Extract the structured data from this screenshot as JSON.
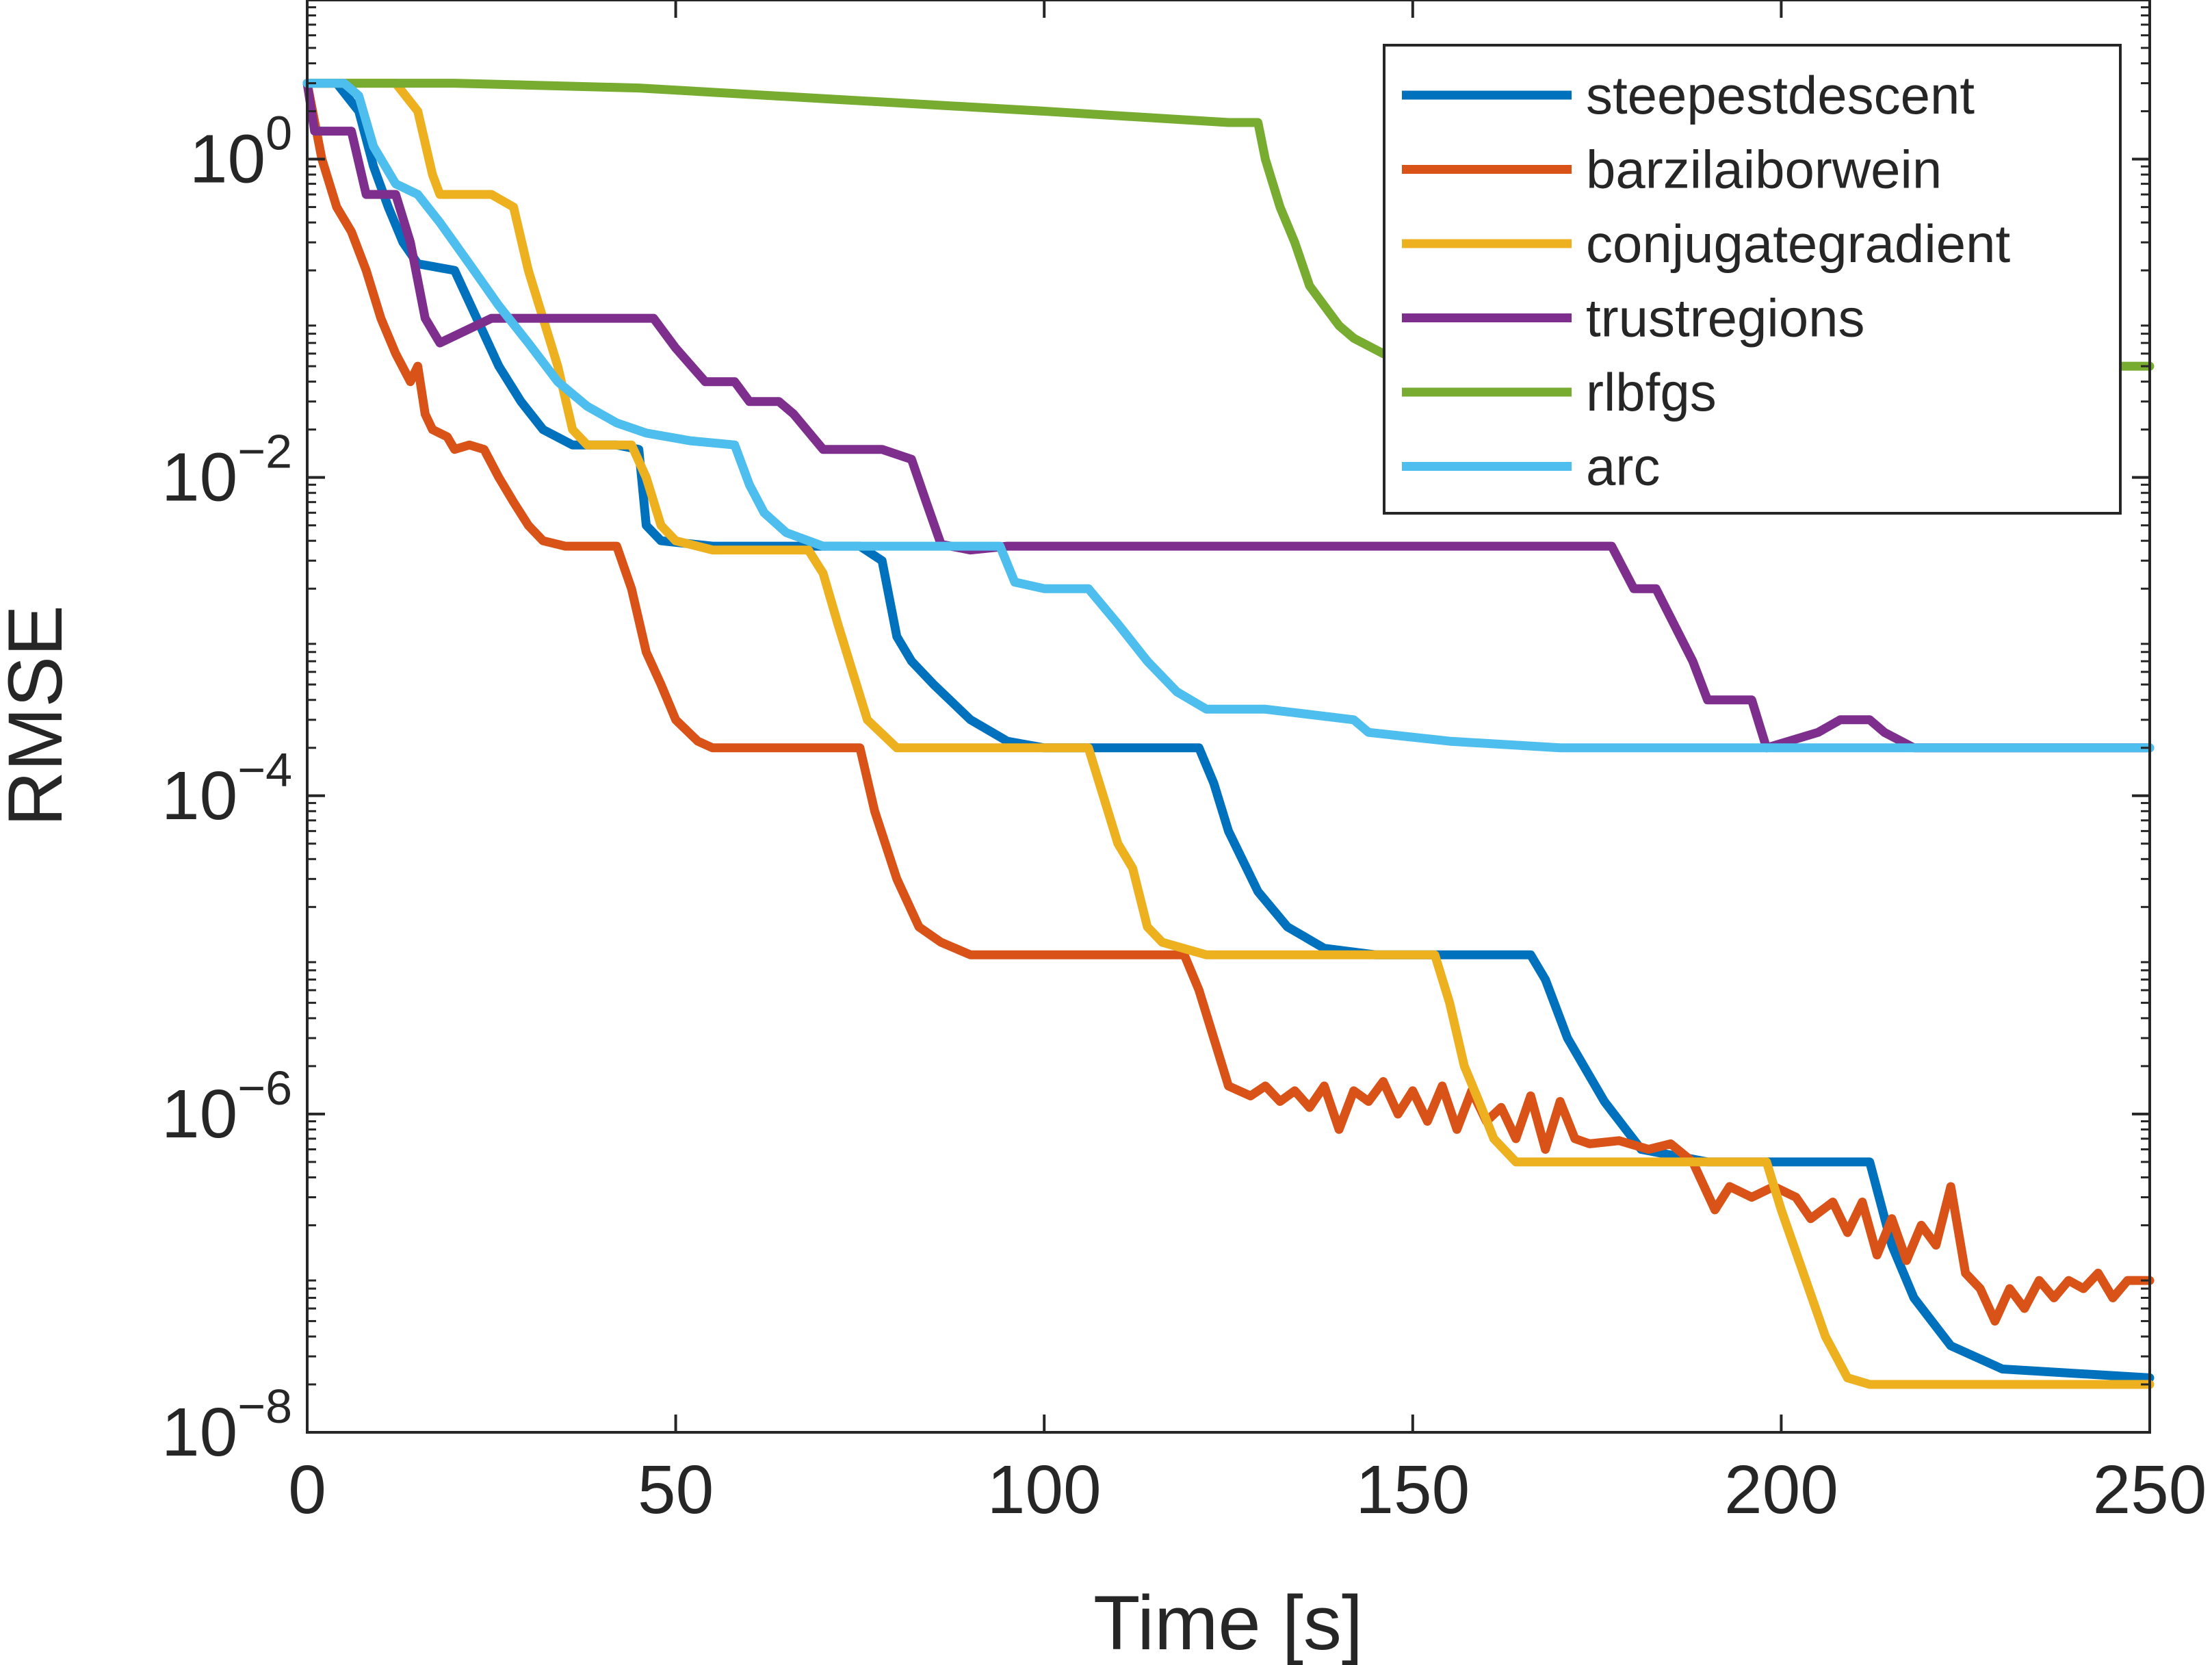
{
  "chart_data": {
    "type": "line",
    "title": "",
    "xlabel": "Time [s]",
    "ylabel": "RMSE",
    "yscale": "log",
    "xlim": [
      0,
      250
    ],
    "ylim": [
      1e-08,
      10
    ],
    "xticks": [
      0,
      50,
      100,
      150,
      200,
      250
    ],
    "xtick_labels": [
      "0",
      "50",
      "100",
      "150",
      "200",
      "250"
    ],
    "yticks": [
      {
        "value": 1e-08,
        "base": "10",
        "exp": "−8"
      },
      {
        "value": 1e-06,
        "base": "10",
        "exp": "−6"
      },
      {
        "value": 0.0001,
        "base": "10",
        "exp": "−4"
      },
      {
        "value": 0.01,
        "base": "10",
        "exp": "−2"
      },
      {
        "value": 1,
        "base": "10",
        "exp": "0"
      }
    ],
    "grid": false,
    "legend_position": "top-right",
    "series": [
      {
        "name": "steepestdescent",
        "color": "#0072BD",
        "points": [
          [
            0,
            3.0
          ],
          [
            4,
            3.0
          ],
          [
            7,
            2.0
          ],
          [
            9,
            0.9
          ],
          [
            11,
            0.5
          ],
          [
            13,
            0.3
          ],
          [
            15,
            0.22
          ],
          [
            20,
            0.2
          ],
          [
            23,
            0.1
          ],
          [
            26,
            0.05
          ],
          [
            29,
            0.03
          ],
          [
            32,
            0.02
          ],
          [
            36,
            0.016
          ],
          [
            42,
            0.016
          ],
          [
            45,
            0.015
          ],
          [
            46,
            0.005
          ],
          [
            48,
            0.004
          ],
          [
            55,
            0.0037
          ],
          [
            68,
            0.0037
          ],
          [
            75,
            0.0037
          ],
          [
            78,
            0.003
          ],
          [
            80,
            0.001
          ],
          [
            82,
            0.0007
          ],
          [
            85,
            0.0005
          ],
          [
            90,
            0.0003
          ],
          [
            95,
            0.00022
          ],
          [
            100,
            0.0002
          ],
          [
            114,
            0.0002
          ],
          [
            121,
            0.0002
          ],
          [
            123,
            0.00012
          ],
          [
            125,
            6e-05
          ],
          [
            129,
            2.5e-05
          ],
          [
            133,
            1.5e-05
          ],
          [
            138,
            1.1e-05
          ],
          [
            145,
            1e-05
          ],
          [
            166,
            1e-05
          ],
          [
            168,
            7e-06
          ],
          [
            171,
            3e-06
          ],
          [
            176,
            1.2e-06
          ],
          [
            181,
            6e-07
          ],
          [
            190,
            5e-07
          ],
          [
            212,
            5e-07
          ],
          [
            215,
            1.5e-07
          ],
          [
            218,
            7e-08
          ],
          [
            223,
            3.5e-08
          ],
          [
            230,
            2.5e-08
          ],
          [
            250,
            2.2e-08
          ]
        ]
      },
      {
        "name": "barzilaiborwein",
        "color": "#D95319",
        "points": [
          [
            0,
            3.0
          ],
          [
            2,
            1.0
          ],
          [
            4,
            0.5
          ],
          [
            6,
            0.35
          ],
          [
            8,
            0.2
          ],
          [
            10,
            0.1
          ],
          [
            12,
            0.06
          ],
          [
            14,
            0.04
          ],
          [
            15,
            0.05
          ],
          [
            16,
            0.025
          ],
          [
            17,
            0.02
          ],
          [
            19,
            0.018
          ],
          [
            20,
            0.015
          ],
          [
            22,
            0.016
          ],
          [
            24,
            0.015
          ],
          [
            26,
            0.01
          ],
          [
            28,
            0.007
          ],
          [
            30,
            0.005
          ],
          [
            32,
            0.004
          ],
          [
            35,
            0.0037
          ],
          [
            42,
            0.0037
          ],
          [
            44,
            0.002
          ],
          [
            46,
            0.0008
          ],
          [
            48,
            0.0005
          ],
          [
            50,
            0.0003
          ],
          [
            53,
            0.00022
          ],
          [
            55,
            0.0002
          ],
          [
            75,
            0.0002
          ],
          [
            77,
            8e-05
          ],
          [
            80,
            3e-05
          ],
          [
            83,
            1.5e-05
          ],
          [
            86,
            1.2e-05
          ],
          [
            90,
            1e-05
          ],
          [
            110,
            1e-05
          ],
          [
            119,
            1e-05
          ],
          [
            121,
            6e-06
          ],
          [
            123,
            3e-06
          ],
          [
            125,
            1.5e-06
          ],
          [
            128,
            1.3e-06
          ],
          [
            130,
            1.5e-06
          ],
          [
            132,
            1.2e-06
          ],
          [
            134,
            1.4e-06
          ],
          [
            136,
            1.1e-06
          ],
          [
            138,
            1.5e-06
          ],
          [
            140,
            8e-07
          ],
          [
            142,
            1.4e-06
          ],
          [
            144,
            1.2e-06
          ],
          [
            146,
            1.6e-06
          ],
          [
            148,
            1e-06
          ],
          [
            150,
            1.4e-06
          ],
          [
            152,
            9e-07
          ],
          [
            154,
            1.5e-06
          ],
          [
            156,
            8e-07
          ],
          [
            158,
            1.4e-06
          ],
          [
            160,
            9e-07
          ],
          [
            162,
            1.1e-06
          ],
          [
            164,
            7e-07
          ],
          [
            166,
            1.3e-06
          ],
          [
            168,
            6e-07
          ],
          [
            170,
            1.2e-06
          ],
          [
            172,
            7e-07
          ],
          [
            174,
            6.5e-07
          ],
          [
            178,
            6.8e-07
          ],
          [
            182,
            6e-07
          ],
          [
            185,
            6.5e-07
          ],
          [
            188,
            5e-07
          ],
          [
            191,
            2.5e-07
          ],
          [
            193,
            3.5e-07
          ],
          [
            196,
            3e-07
          ],
          [
            199,
            3.5e-07
          ],
          [
            202,
            3e-07
          ],
          [
            204,
            2.2e-07
          ],
          [
            207,
            2.8e-07
          ],
          [
            209,
            1.8e-07
          ],
          [
            211,
            2.8e-07
          ],
          [
            213,
            1.3e-07
          ],
          [
            215,
            2.2e-07
          ],
          [
            217,
            1.2e-07
          ],
          [
            219,
            2e-07
          ],
          [
            221,
            1.5e-07
          ],
          [
            223,
            3.5e-07
          ],
          [
            225,
            1e-07
          ],
          [
            227,
            8e-08
          ],
          [
            229,
            5e-08
          ],
          [
            231,
            8e-08
          ],
          [
            233,
            6e-08
          ],
          [
            235,
            9e-08
          ],
          [
            237,
            7e-08
          ],
          [
            239,
            9e-08
          ],
          [
            241,
            8e-08
          ],
          [
            243,
            1e-07
          ],
          [
            245,
            7e-08
          ],
          [
            247,
            9e-08
          ],
          [
            250,
            9e-08
          ]
        ]
      },
      {
        "name": "conjugategradient",
        "color": "#EDB120",
        "points": [
          [
            0,
            3.0
          ],
          [
            12,
            3.0
          ],
          [
            15,
            2.0
          ],
          [
            17,
            0.8
          ],
          [
            18,
            0.6
          ],
          [
            25,
            0.6
          ],
          [
            28,
            0.5
          ],
          [
            30,
            0.2
          ],
          [
            32,
            0.1
          ],
          [
            34,
            0.05
          ],
          [
            36,
            0.02
          ],
          [
            38,
            0.016
          ],
          [
            44,
            0.016
          ],
          [
            46,
            0.01
          ],
          [
            48,
            0.005
          ],
          [
            50,
            0.004
          ],
          [
            55,
            0.0035
          ],
          [
            68,
            0.0035
          ],
          [
            70,
            0.0025
          ],
          [
            72,
            0.0012
          ],
          [
            74,
            0.0006
          ],
          [
            76,
            0.0003
          ],
          [
            80,
            0.0002
          ],
          [
            88,
            0.0002
          ],
          [
            106,
            0.0002
          ],
          [
            108,
            0.0001
          ],
          [
            110,
            5e-05
          ],
          [
            112,
            3.5e-05
          ],
          [
            114,
            1.5e-05
          ],
          [
            116,
            1.2e-05
          ],
          [
            122,
            1e-05
          ],
          [
            153,
            1e-05
          ],
          [
            155,
            5e-06
          ],
          [
            157,
            2e-06
          ],
          [
            159,
            1.2e-06
          ],
          [
            161,
            7e-07
          ],
          [
            164,
            5e-07
          ],
          [
            170,
            5e-07
          ],
          [
            198,
            5e-07
          ],
          [
            200,
            2.5e-07
          ],
          [
            203,
            1e-07
          ],
          [
            206,
            4e-08
          ],
          [
            209,
            2.2e-08
          ],
          [
            212,
            2e-08
          ],
          [
            250,
            2e-08
          ]
        ]
      },
      {
        "name": "trustregions",
        "color": "#7E2F8E",
        "points": [
          [
            0,
            3.0
          ],
          [
            1,
            1.5
          ],
          [
            6,
            1.5
          ],
          [
            8,
            0.6
          ],
          [
            12,
            0.6
          ],
          [
            14,
            0.3
          ],
          [
            16,
            0.1
          ],
          [
            18,
            0.07
          ],
          [
            25,
            0.1
          ],
          [
            32,
            0.1
          ],
          [
            47,
            0.1
          ],
          [
            50,
            0.065
          ],
          [
            54,
            0.04
          ],
          [
            58,
            0.04
          ],
          [
            60,
            0.03
          ],
          [
            64,
            0.03
          ],
          [
            66,
            0.025
          ],
          [
            70,
            0.015
          ],
          [
            74,
            0.015
          ],
          [
            78,
            0.015
          ],
          [
            82,
            0.013
          ],
          [
            84,
            0.007
          ],
          [
            86,
            0.0038
          ],
          [
            90,
            0.0035
          ],
          [
            95,
            0.0037
          ],
          [
            177,
            0.0037
          ],
          [
            180,
            0.002
          ],
          [
            183,
            0.002
          ],
          [
            188,
            0.0007
          ],
          [
            190,
            0.0004
          ],
          [
            196,
            0.0004
          ],
          [
            198,
            0.0002
          ],
          [
            205,
            0.00025
          ],
          [
            208,
            0.0003
          ],
          [
            212,
            0.0003
          ],
          [
            214,
            0.00025
          ],
          [
            218,
            0.0002
          ],
          [
            230,
            0.0002
          ],
          [
            250,
            0.0002
          ]
        ]
      },
      {
        "name": "rlbfgs",
        "color": "#77AC30",
        "points": [
          [
            0,
            3.0
          ],
          [
            20,
            3.0
          ],
          [
            45,
            2.8
          ],
          [
            70,
            2.4
          ],
          [
            100,
            2.0
          ],
          [
            125,
            1.7
          ],
          [
            129,
            1.7
          ],
          [
            130,
            1.0
          ],
          [
            132,
            0.5
          ],
          [
            134,
            0.3
          ],
          [
            136,
            0.16
          ],
          [
            138,
            0.12
          ],
          [
            140,
            0.09
          ],
          [
            142,
            0.075
          ],
          [
            146,
            0.06
          ],
          [
            150,
            0.055
          ],
          [
            155,
            0.05
          ],
          [
            160,
            0.05
          ],
          [
            170,
            0.05
          ],
          [
            180,
            0.05
          ],
          [
            200,
            0.05
          ],
          [
            230,
            0.05
          ],
          [
            250,
            0.05
          ]
        ]
      },
      {
        "name": "arc",
        "color": "#4DBEEE",
        "points": [
          [
            0,
            3.0
          ],
          [
            5,
            3.0
          ],
          [
            7,
            2.5
          ],
          [
            9,
            1.2
          ],
          [
            12,
            0.7
          ],
          [
            15,
            0.6
          ],
          [
            18,
            0.4
          ],
          [
            22,
            0.22
          ],
          [
            26,
            0.12
          ],
          [
            30,
            0.07
          ],
          [
            34,
            0.04
          ],
          [
            38,
            0.028
          ],
          [
            42,
            0.022
          ],
          [
            46,
            0.019
          ],
          [
            52,
            0.017
          ],
          [
            58,
            0.016
          ],
          [
            60,
            0.009
          ],
          [
            62,
            0.006
          ],
          [
            65,
            0.0045
          ],
          [
            70,
            0.0037
          ],
          [
            76,
            0.0037
          ],
          [
            94,
            0.0037
          ],
          [
            96,
            0.0022
          ],
          [
            100,
            0.002
          ],
          [
            106,
            0.002
          ],
          [
            110,
            0.0012
          ],
          [
            114,
            0.0007
          ],
          [
            118,
            0.00045
          ],
          [
            122,
            0.00035
          ],
          [
            130,
            0.00035
          ],
          [
            142,
            0.0003
          ],
          [
            144,
            0.00025
          ],
          [
            155,
            0.00022
          ],
          [
            170,
            0.0002
          ],
          [
            250,
            0.0002
          ]
        ]
      }
    ]
  }
}
